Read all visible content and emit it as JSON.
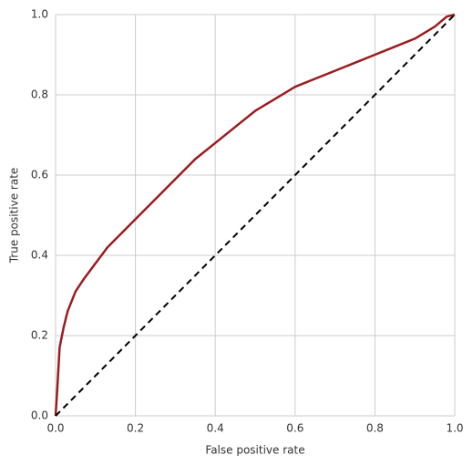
{
  "chart_data": {
    "type": "line",
    "xlabel": "False positive rate",
    "ylabel": "True positive rate",
    "xlim": [
      0,
      1
    ],
    "ylim": [
      0,
      1
    ],
    "xticks": [
      {
        "value": 0,
        "label": "0.0"
      },
      0.2,
      0.4,
      0.6,
      0.8,
      {
        "value": 1,
        "label": "1.0"
      }
    ],
    "yticks": [
      {
        "value": 0,
        "label": "0.0"
      },
      0.2,
      0.4,
      0.6,
      0.8,
      {
        "value": 1,
        "label": "1.0"
      }
    ],
    "grid": true,
    "series": [
      {
        "color": "#9b1c1f",
        "style": "solid",
        "x": [
          0,
          0.005,
          0.01,
          0.02,
          0.03,
          0.05,
          0.07,
          0.1,
          0.13,
          0.15,
          0.2,
          0.25,
          0.3,
          0.35,
          0.4,
          0.45,
          0.5,
          0.55,
          0.6,
          0.65,
          0.7,
          0.75,
          0.8,
          0.85,
          0.9,
          0.95,
          0.98,
          1
        ],
        "values": [
          0,
          0.08,
          0.17,
          0.22,
          0.26,
          0.31,
          0.34,
          0.38,
          0.42,
          0.44,
          0.49,
          0.54,
          0.59,
          0.64,
          0.68,
          0.72,
          0.76,
          0.79,
          0.82,
          0.84,
          0.86,
          0.88,
          0.9,
          0.92,
          0.94,
          0.97,
          0.995,
          1
        ]
      },
      {
        "color": "#000000",
        "style": "dashed",
        "x": [
          0,
          1
        ],
        "values": [
          0,
          1
        ]
      }
    ]
  }
}
